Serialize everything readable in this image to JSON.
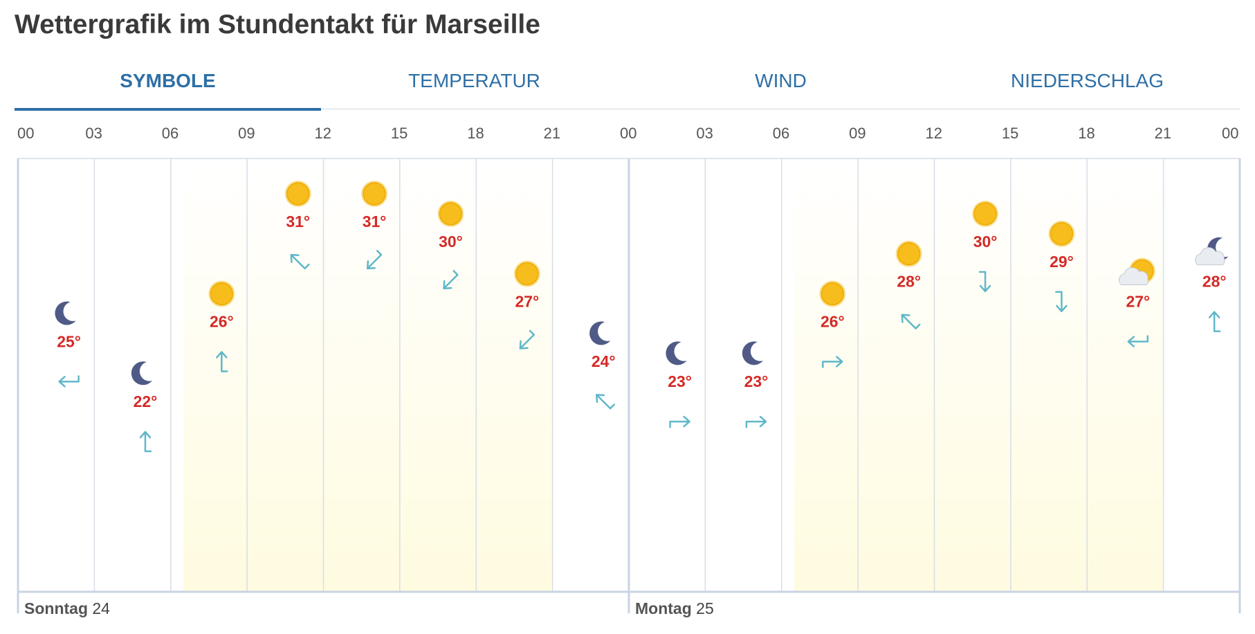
{
  "title": "Wettergrafik im Stundentakt für Marseille",
  "tabs": [
    {
      "label": "SYMBOLE",
      "active": true
    },
    {
      "label": "TEMPERATUR",
      "active": false
    },
    {
      "label": "WIND",
      "active": false
    },
    {
      "label": "NIEDERSCHLAG",
      "active": false
    }
  ],
  "colors": {
    "accent": "#2e6fa6",
    "temp": "#d42a26",
    "wind": "#5fb7c9",
    "moon": "#4f5b86",
    "sun": "#f6bd1c",
    "daylight": "#fffbe0",
    "grid": "#d8dde6"
  },
  "days": [
    {
      "name": "Sonntag",
      "date": "24"
    },
    {
      "name": "Montag",
      "date": "25"
    }
  ],
  "hour_labels": [
    "00",
    "03",
    "06",
    "09",
    "12",
    "15",
    "18",
    "21",
    "00",
    "03",
    "06",
    "09",
    "12",
    "15",
    "18",
    "21",
    "00"
  ],
  "chart_data": {
    "type": "line",
    "x": [
      "02",
      "05",
      "08",
      "11",
      "14",
      "17",
      "20",
      "23",
      "02",
      "05",
      "08",
      "11",
      "14",
      "17",
      "20",
      "23"
    ],
    "xlabel": "",
    "ylabel": "",
    "series": [
      {
        "values": [
          25,
          22,
          26,
          31,
          31,
          30,
          27,
          24,
          23,
          23,
          26,
          28,
          30,
          29,
          27,
          28
        ]
      }
    ],
    "symbols": [
      "moon-icon",
      "moon-icon",
      "sun-icon",
      "sun-icon",
      "sun-icon",
      "sun-icon",
      "sun-icon",
      "moon-icon",
      "moon-icon",
      "moon-icon",
      "sun-icon",
      "sun-icon",
      "sun-icon",
      "sun-icon",
      "sun-cloud-icon",
      "moon-cloud-icon"
    ],
    "wind_direction_deg": [
      90,
      180,
      180,
      135,
      45,
      45,
      45,
      135,
      270,
      270,
      270,
      135,
      0,
      0,
      90,
      180
    ],
    "temp_labels": [
      "25°",
      "22°",
      "26°",
      "31°",
      "31°",
      "30°",
      "27°",
      "24°",
      "23°",
      "23°",
      "26°",
      "28°",
      "30°",
      "29°",
      "27°",
      "28°"
    ],
    "daylight": [
      [
        "06:30",
        "21:00"
      ],
      [
        "06:30",
        "21:00"
      ]
    ],
    "grid": true
  }
}
